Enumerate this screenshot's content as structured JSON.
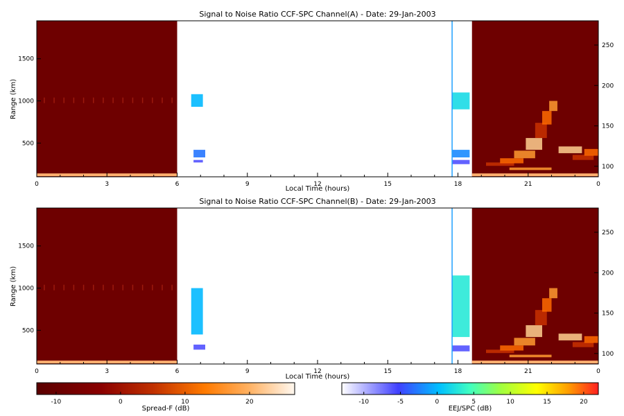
{
  "chart_data": [
    {
      "type": "heatmap",
      "title": "Signal to Noise Ratio CCF-SPC Channel(A) - Date: 29-Jan-2003",
      "xlabel": "Local Time (hours)",
      "ylabel": "Range (km)",
      "x_ticks": [
        "0",
        "3",
        "6",
        "9",
        "12",
        "15",
        "18",
        "21",
        "0"
      ],
      "y_ticks": [
        500,
        1000,
        1500
      ],
      "y2_ticks": [
        100,
        150,
        200,
        250
      ],
      "xlim": [
        0,
        24
      ],
      "ylim": [
        100,
        1950
      ],
      "y2lim": [
        87,
        280
      ],
      "spread_f_blocks_hours": [
        [
          0,
          6
        ],
        [
          18.6,
          24
        ]
      ],
      "marker_time_hours": 17.75,
      "snr_patches": [
        {
          "t0": 6.6,
          "t1": 7.1,
          "r0": 930,
          "r1": 1080,
          "snr_db": 0
        },
        {
          "t0": 6.7,
          "t1": 7.2,
          "r0": 330,
          "r1": 420,
          "snr_db": -3
        },
        {
          "t0": 6.7,
          "t1": 7.1,
          "r0": 270,
          "r1": 300,
          "snr_db": -6
        },
        {
          "t0": 17.75,
          "t1": 18.5,
          "r0": 900,
          "r1": 1100,
          "snr_db": 2
        },
        {
          "t0": 17.75,
          "t1": 18.5,
          "r0": 330,
          "r1": 420,
          "snr_db": -2
        },
        {
          "t0": 17.75,
          "t1": 18.5,
          "r0": 250,
          "r1": 300,
          "snr_db": -6
        }
      ]
    },
    {
      "type": "heatmap",
      "title": "Signal to Noise Ratio CCF-SPC Channel(B) - Date: 29-Jan-2003",
      "xlabel": "Local Time (hours)",
      "ylabel": "Range (km)",
      "x_ticks": [
        "0",
        "3",
        "6",
        "9",
        "12",
        "15",
        "18",
        "21",
        "0"
      ],
      "y_ticks": [
        500,
        1000,
        1500
      ],
      "y2_ticks": [
        100,
        150,
        200,
        250
      ],
      "xlim": [
        0,
        24
      ],
      "ylim": [
        100,
        1950
      ],
      "y2lim": [
        87,
        280
      ],
      "spread_f_blocks_hours": [
        [
          0,
          6
        ],
        [
          18.6,
          24
        ]
      ],
      "marker_time_hours": 17.75,
      "snr_patches": [
        {
          "t0": 6.6,
          "t1": 7.1,
          "r0": 450,
          "r1": 1000,
          "snr_db": 0
        },
        {
          "t0": 6.7,
          "t1": 7.2,
          "r0": 270,
          "r1": 330,
          "snr_db": -6
        },
        {
          "t0": 17.75,
          "t1": 18.5,
          "r0": 420,
          "r1": 1150,
          "snr_db": 3
        },
        {
          "t0": 17.75,
          "t1": 18.5,
          "r0": 250,
          "r1": 320,
          "snr_db": -6
        }
      ]
    }
  ],
  "colorbars": {
    "spread_f": {
      "label": "Spread-F (dB)",
      "ticks": [
        "-10",
        "0",
        "10",
        "20"
      ],
      "range": [
        -13,
        27
      ]
    },
    "eej_spc": {
      "label": "EEJ/SPC (dB)",
      "ticks": [
        "-10",
        "-5",
        "0",
        "5",
        "10",
        "15",
        "20"
      ],
      "range": [
        -13,
        22
      ]
    }
  },
  "colors": {
    "spread_f_background": "#6e0000",
    "spread_f_bright": "#ff8000",
    "marker_line": "#1fa0ff",
    "eej_low": "#ffffff",
    "eej_mid": "#3f3fff",
    "eej_high": "#ff2020"
  }
}
